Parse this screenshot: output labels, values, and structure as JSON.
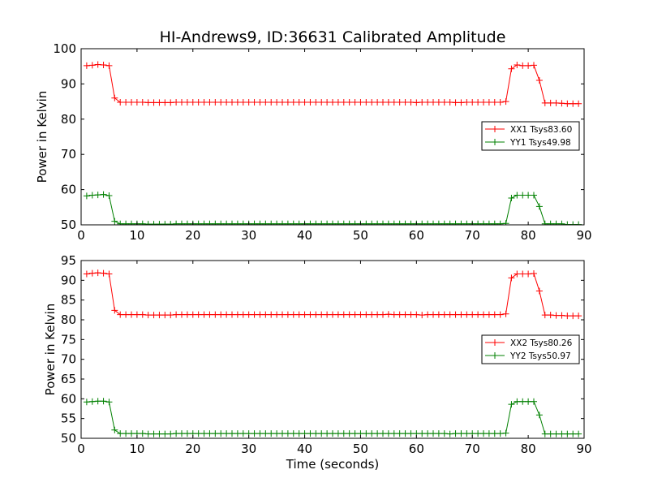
{
  "figure": {
    "title": "HI-Andrews9, ID:36631 Calibrated Amplitude",
    "xlabel": "Time (seconds)"
  },
  "chart_data": [
    {
      "type": "line",
      "title": "HI-Andrews9, ID:36631 Calibrated Amplitude",
      "xlabel": "",
      "ylabel": "Power in Kelvin",
      "xlim": [
        0,
        90
      ],
      "ylim": [
        50,
        100
      ],
      "xticks": [
        0,
        10,
        20,
        30,
        40,
        50,
        60,
        70,
        80,
        90
      ],
      "yticks": [
        50,
        60,
        70,
        80,
        90,
        100
      ],
      "grid": false,
      "legend": "center-right",
      "x": [
        1,
        2,
        3,
        4,
        5,
        6,
        7,
        8,
        9,
        10,
        11,
        12,
        13,
        14,
        15,
        16,
        17,
        18,
        19,
        20,
        21,
        22,
        23,
        24,
        25,
        26,
        27,
        28,
        29,
        30,
        31,
        32,
        33,
        34,
        35,
        36,
        37,
        38,
        39,
        40,
        41,
        42,
        43,
        44,
        45,
        46,
        47,
        48,
        49,
        50,
        51,
        52,
        53,
        54,
        55,
        56,
        57,
        58,
        59,
        60,
        61,
        62,
        63,
        64,
        65,
        66,
        67,
        68,
        69,
        70,
        71,
        72,
        73,
        74,
        75,
        76,
        77,
        78,
        79,
        80,
        81,
        82,
        83,
        84,
        85,
        86,
        87,
        88,
        89
      ],
      "series": [
        {
          "name": "XX1 Tsys83.60",
          "color": "#ff0000",
          "values": [
            95.2,
            95.3,
            95.5,
            95.4,
            95.2,
            86.0,
            84.8,
            84.8,
            84.8,
            84.8,
            84.8,
            84.7,
            84.7,
            84.7,
            84.7,
            84.7,
            84.8,
            84.8,
            84.8,
            84.8,
            84.8,
            84.8,
            84.8,
            84.8,
            84.8,
            84.8,
            84.8,
            84.8,
            84.8,
            84.8,
            84.8,
            84.8,
            84.8,
            84.8,
            84.8,
            84.8,
            84.8,
            84.8,
            84.8,
            84.8,
            84.8,
            84.8,
            84.8,
            84.8,
            84.8,
            84.8,
            84.8,
            84.8,
            84.8,
            84.8,
            84.8,
            84.8,
            84.8,
            84.8,
            84.8,
            84.8,
            84.8,
            84.8,
            84.8,
            84.7,
            84.8,
            84.8,
            84.8,
            84.8,
            84.8,
            84.8,
            84.7,
            84.7,
            84.8,
            84.8,
            84.8,
            84.8,
            84.8,
            84.8,
            84.8,
            85.0,
            94.3,
            95.4,
            95.2,
            95.2,
            95.3,
            91.0,
            84.6,
            84.6,
            84.6,
            84.5,
            84.4,
            84.4,
            84.4
          ]
        },
        {
          "name": "YY1 Tsys49.98",
          "color": "#008000",
          "values": [
            58.2,
            58.4,
            58.5,
            58.6,
            58.3,
            51.0,
            50.3,
            50.3,
            50.3,
            50.3,
            50.3,
            50.2,
            50.2,
            50.2,
            50.2,
            50.2,
            50.3,
            50.3,
            50.3,
            50.3,
            50.3,
            50.3,
            50.3,
            50.3,
            50.3,
            50.3,
            50.3,
            50.3,
            50.3,
            50.3,
            50.3,
            50.3,
            50.3,
            50.3,
            50.3,
            50.3,
            50.3,
            50.3,
            50.3,
            50.3,
            50.3,
            50.3,
            50.3,
            50.3,
            50.3,
            50.3,
            50.3,
            50.3,
            50.3,
            50.3,
            50.3,
            50.3,
            50.3,
            50.3,
            50.3,
            50.3,
            50.3,
            50.3,
            50.3,
            50.3,
            50.3,
            50.3,
            50.3,
            50.3,
            50.3,
            50.3,
            50.3,
            50.3,
            50.3,
            50.3,
            50.3,
            50.3,
            50.3,
            50.3,
            50.3,
            50.4,
            57.6,
            58.4,
            58.4,
            58.4,
            58.4,
            55.2,
            50.3,
            50.3,
            50.3,
            50.3,
            50.1,
            50.1,
            50.1
          ]
        }
      ]
    },
    {
      "type": "line",
      "title": "",
      "xlabel": "Time (seconds)",
      "ylabel": "Power in Kelvin",
      "xlim": [
        0,
        90
      ],
      "ylim": [
        50,
        95
      ],
      "xticks": [
        0,
        10,
        20,
        30,
        40,
        50,
        60,
        70,
        80,
        90
      ],
      "yticks": [
        50,
        55,
        60,
        65,
        70,
        75,
        80,
        85,
        90,
        95
      ],
      "grid": false,
      "legend": "center-right",
      "x": [
        1,
        2,
        3,
        4,
        5,
        6,
        7,
        8,
        9,
        10,
        11,
        12,
        13,
        14,
        15,
        16,
        17,
        18,
        19,
        20,
        21,
        22,
        23,
        24,
        25,
        26,
        27,
        28,
        29,
        30,
        31,
        32,
        33,
        34,
        35,
        36,
        37,
        38,
        39,
        40,
        41,
        42,
        43,
        44,
        45,
        46,
        47,
        48,
        49,
        50,
        51,
        52,
        53,
        54,
        55,
        56,
        57,
        58,
        59,
        60,
        61,
        62,
        63,
        64,
        65,
        66,
        67,
        68,
        69,
        70,
        71,
        72,
        73,
        74,
        75,
        76,
        77,
        78,
        79,
        80,
        81,
        82,
        83,
        84,
        85,
        86,
        87,
        88,
        89
      ],
      "series": [
        {
          "name": "XX2 Tsys80.26",
          "color": "#ff0000",
          "values": [
            91.6,
            91.8,
            91.9,
            91.8,
            91.6,
            82.4,
            81.3,
            81.3,
            81.3,
            81.3,
            81.3,
            81.2,
            81.2,
            81.2,
            81.2,
            81.2,
            81.3,
            81.3,
            81.3,
            81.3,
            81.3,
            81.3,
            81.3,
            81.3,
            81.3,
            81.3,
            81.3,
            81.3,
            81.3,
            81.3,
            81.3,
            81.3,
            81.3,
            81.3,
            81.3,
            81.3,
            81.3,
            81.3,
            81.3,
            81.3,
            81.3,
            81.3,
            81.3,
            81.3,
            81.3,
            81.3,
            81.3,
            81.3,
            81.3,
            81.3,
            81.3,
            81.3,
            81.3,
            81.3,
            81.4,
            81.3,
            81.3,
            81.3,
            81.3,
            81.3,
            81.2,
            81.3,
            81.3,
            81.3,
            81.3,
            81.3,
            81.3,
            81.3,
            81.3,
            81.3,
            81.3,
            81.3,
            81.3,
            81.3,
            81.3,
            81.5,
            90.6,
            91.6,
            91.6,
            91.6,
            91.7,
            87.3,
            81.2,
            81.2,
            81.1,
            81.1,
            81.0,
            81.0,
            81.0
          ]
        },
        {
          "name": "YY2 Tsys50.97",
          "color": "#008000",
          "values": [
            59.2,
            59.3,
            59.4,
            59.4,
            59.2,
            52.1,
            51.2,
            51.2,
            51.2,
            51.2,
            51.2,
            51.1,
            51.1,
            51.1,
            51.1,
            51.1,
            51.2,
            51.2,
            51.2,
            51.2,
            51.2,
            51.2,
            51.2,
            51.2,
            51.2,
            51.2,
            51.2,
            51.2,
            51.2,
            51.2,
            51.2,
            51.2,
            51.2,
            51.2,
            51.2,
            51.2,
            51.2,
            51.2,
            51.2,
            51.2,
            51.2,
            51.2,
            51.2,
            51.2,
            51.2,
            51.2,
            51.2,
            51.2,
            51.2,
            51.2,
            51.2,
            51.2,
            51.2,
            51.2,
            51.2,
            51.2,
            51.2,
            51.2,
            51.2,
            51.2,
            51.2,
            51.2,
            51.2,
            51.2,
            51.2,
            51.1,
            51.2,
            51.2,
            51.2,
            51.2,
            51.2,
            51.2,
            51.2,
            51.2,
            51.2,
            51.3,
            58.6,
            59.3,
            59.3,
            59.3,
            59.3,
            55.9,
            51.1,
            51.1,
            51.1,
            51.1,
            51.1,
            51.1,
            51.1
          ]
        }
      ]
    }
  ]
}
